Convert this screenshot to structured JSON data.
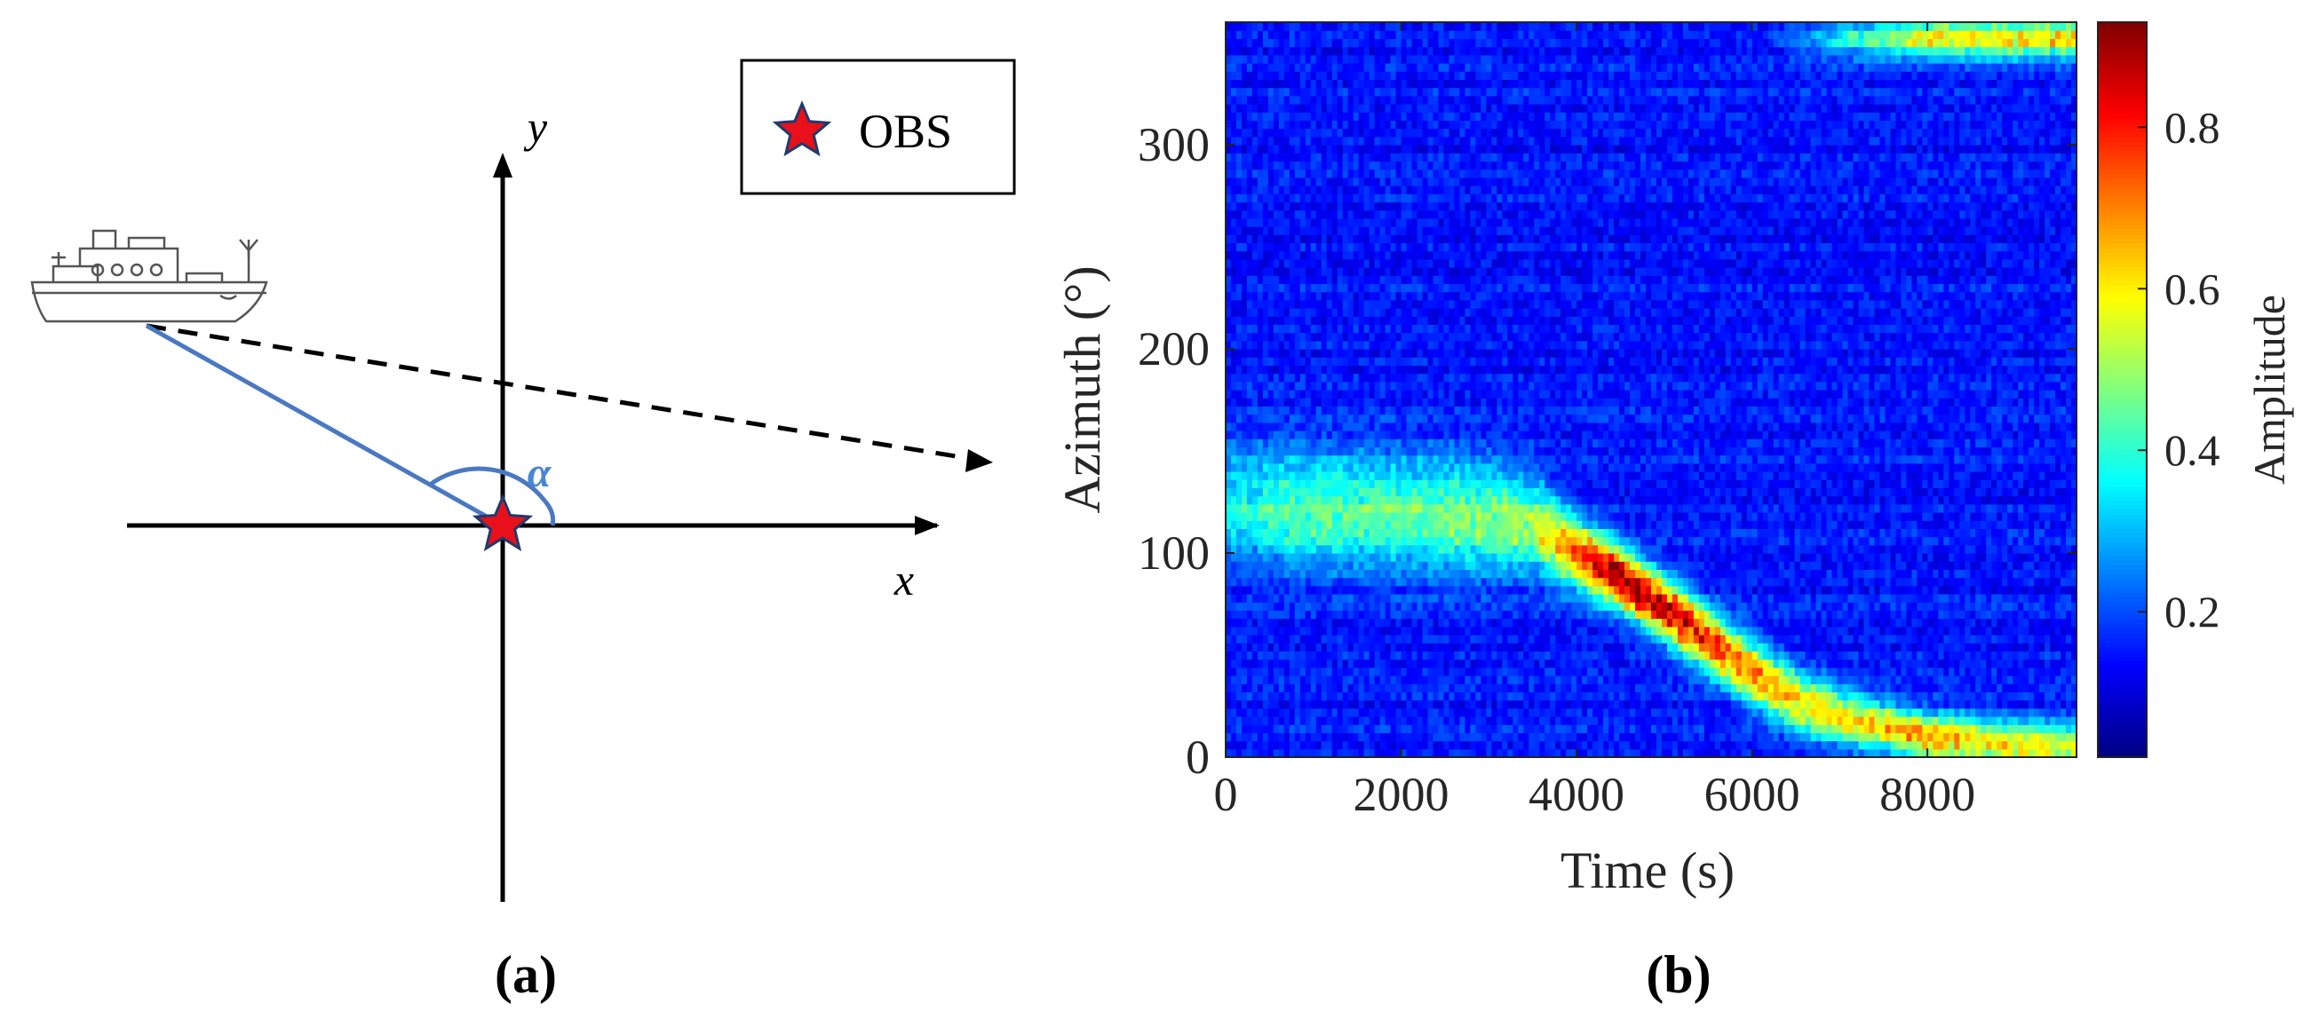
{
  "panel_a": {
    "label": "(a)",
    "legend": {
      "marker_label": "OBS",
      "marker_color": "#e8101a",
      "marker_edge": "#1f3a6e"
    },
    "axes": {
      "x_label": "x",
      "y_label": "y"
    },
    "angle_label": "α",
    "colors": {
      "bearing_line": "#4a78c2",
      "angle_arc": "#4a78c2",
      "angle_text": "#4a86d1",
      "axis": "#000000",
      "dashed": "#000000"
    },
    "icons": [
      "ship-icon",
      "star-icon"
    ]
  },
  "panel_b": {
    "label": "(b)",
    "colorbar": {
      "label": "Amplitude",
      "ticks": [
        "0.2",
        "0.4",
        "0.6",
        "0.8"
      ],
      "tick_values": [
        0.2,
        0.4,
        0.6,
        0.8
      ],
      "range": [
        0.02,
        0.93
      ],
      "colormap": "jet"
    }
  },
  "chart_data": {
    "type": "heatmap",
    "title": "",
    "xlabel": "Time (s)",
    "ylabel": "Azimuth (°)",
    "xlim": [
      0,
      9700
    ],
    "ylim": [
      0,
      360
    ],
    "x_ticks": [
      0,
      2000,
      4000,
      6000,
      8000
    ],
    "x_tick_labels": [
      "0",
      "2000",
      "4000",
      "6000",
      "8000"
    ],
    "y_ticks": [
      0,
      100,
      200,
      300
    ],
    "y_tick_labels": [
      "0",
      "100",
      "200",
      "300"
    ],
    "background_amplitude": 0.12,
    "ridge": {
      "description_points_time_s": [
        0,
        700,
        2000,
        3000,
        3500,
        4000,
        4500,
        5000,
        5500,
        6000,
        6500,
        7000,
        7500,
        8000,
        8500,
        9000,
        9700
      ],
      "azimuth_deg": [
        125,
        122,
        120,
        117,
        114,
        100,
        88,
        73,
        58,
        42,
        28,
        20,
        15,
        10,
        8,
        6,
        5
      ],
      "peak_amplitude": [
        0.33,
        0.42,
        0.43,
        0.46,
        0.5,
        0.72,
        0.9,
        0.86,
        0.78,
        0.68,
        0.6,
        0.58,
        0.62,
        0.66,
        0.6,
        0.58,
        0.55
      ],
      "width_deg": [
        30,
        30,
        30,
        28,
        24,
        18,
        16,
        16,
        16,
        16,
        16,
        14,
        12,
        12,
        12,
        12,
        12
      ]
    },
    "upper_band": {
      "azimuth_deg": 352,
      "time_start_s": 6200,
      "peak_amplitude": 0.6
    }
  }
}
